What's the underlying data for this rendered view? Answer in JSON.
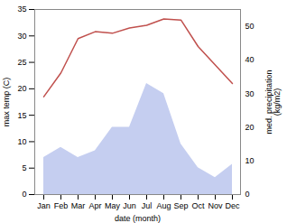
{
  "chart_data": {
    "type": "line",
    "categories": [
      "Jan",
      "Feb",
      "Mar",
      "Apr",
      "May",
      "Jun",
      "Jul",
      "Aug",
      "Sep",
      "Oct",
      "Nov",
      "Dec"
    ],
    "series": [
      {
        "type": "area",
        "axis": "y2",
        "color": "#c5cef0",
        "values": [
          11,
          14,
          11,
          13,
          20,
          20,
          33,
          30,
          15,
          8,
          5,
          9
        ]
      },
      {
        "type": "line",
        "color": "#c0504d",
        "values": [
          18.5,
          23.0,
          29.5,
          30.8,
          30.5,
          31.5,
          32.0,
          33.2,
          33.0,
          28.0,
          24.5,
          21.0
        ]
      }
    ],
    "xlabel": "date (month)",
    "ylabel": "max temp (C)",
    "y2label": "med. precipitation\n(kg/m2)",
    "ylim": [
      0,
      35
    ],
    "yticks": [
      0,
      5,
      10,
      15,
      20,
      25,
      30,
      35
    ],
    "y2lim": [
      0,
      55
    ],
    "y2ticks": [
      0,
      10,
      20,
      30,
      40,
      50
    ],
    "grid": false
  }
}
